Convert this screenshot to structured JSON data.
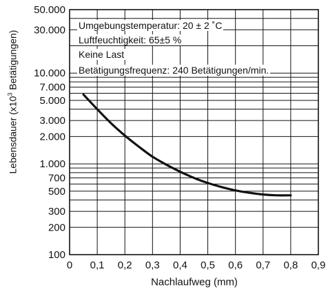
{
  "chart_data": {
    "type": "line",
    "title": "",
    "xlabel": "Nachlaufweg (mm)",
    "ylabel_parts": [
      "Lebensdauer (x10",
      "3",
      " Betätigungen)"
    ],
    "xlim": [
      0,
      0.9
    ],
    "ylim": [
      100,
      50000
    ],
    "yscale": "log",
    "grid": true,
    "x_ticks": [
      "0",
      "0,1",
      "0,2",
      "0,3",
      "0,4",
      "0,5",
      "0,6",
      "0,7",
      "0,8",
      "0,9"
    ],
    "y_ticks": [
      {
        "value": 100,
        "label": "100"
      },
      {
        "value": 200,
        "label": "200"
      },
      {
        "value": 300,
        "label": "300"
      },
      {
        "value": 500,
        "label": "500"
      },
      {
        "value": 700,
        "label": "700"
      },
      {
        "value": 1000,
        "label": "1.000"
      },
      {
        "value": 2000,
        "label": "2.000"
      },
      {
        "value": 3000,
        "label": "3.000"
      },
      {
        "value": 5000,
        "label": "5.000"
      },
      {
        "value": 7000,
        "label": "7.000"
      },
      {
        "value": 10000,
        "label": "10.000"
      },
      {
        "value": 30000,
        "label": "30.000"
      },
      {
        "value": 50000,
        "label": "50.000"
      }
    ],
    "y_minor_lines": [
      400,
      600,
      800,
      900,
      4000,
      6000,
      8000,
      9000,
      20000,
      40000
    ],
    "annotations": [
      "Umgebungstemperatur: 20 ± 2 ˚C",
      "Luftfeuchtigkeit: 65±5 %",
      "Keine Last",
      "Betätigungsfrequenz: 240 Betätigungen/min."
    ],
    "series": [
      {
        "x": [
          0.05,
          0.1,
          0.15,
          0.2,
          0.25,
          0.3,
          0.35,
          0.4,
          0.45,
          0.5,
          0.55,
          0.6,
          0.65,
          0.7,
          0.75,
          0.8
        ],
        "values": [
          5800,
          4000,
          2800,
          2050,
          1550,
          1200,
          980,
          820,
          700,
          615,
          555,
          510,
          480,
          460,
          450,
          450
        ]
      }
    ]
  }
}
